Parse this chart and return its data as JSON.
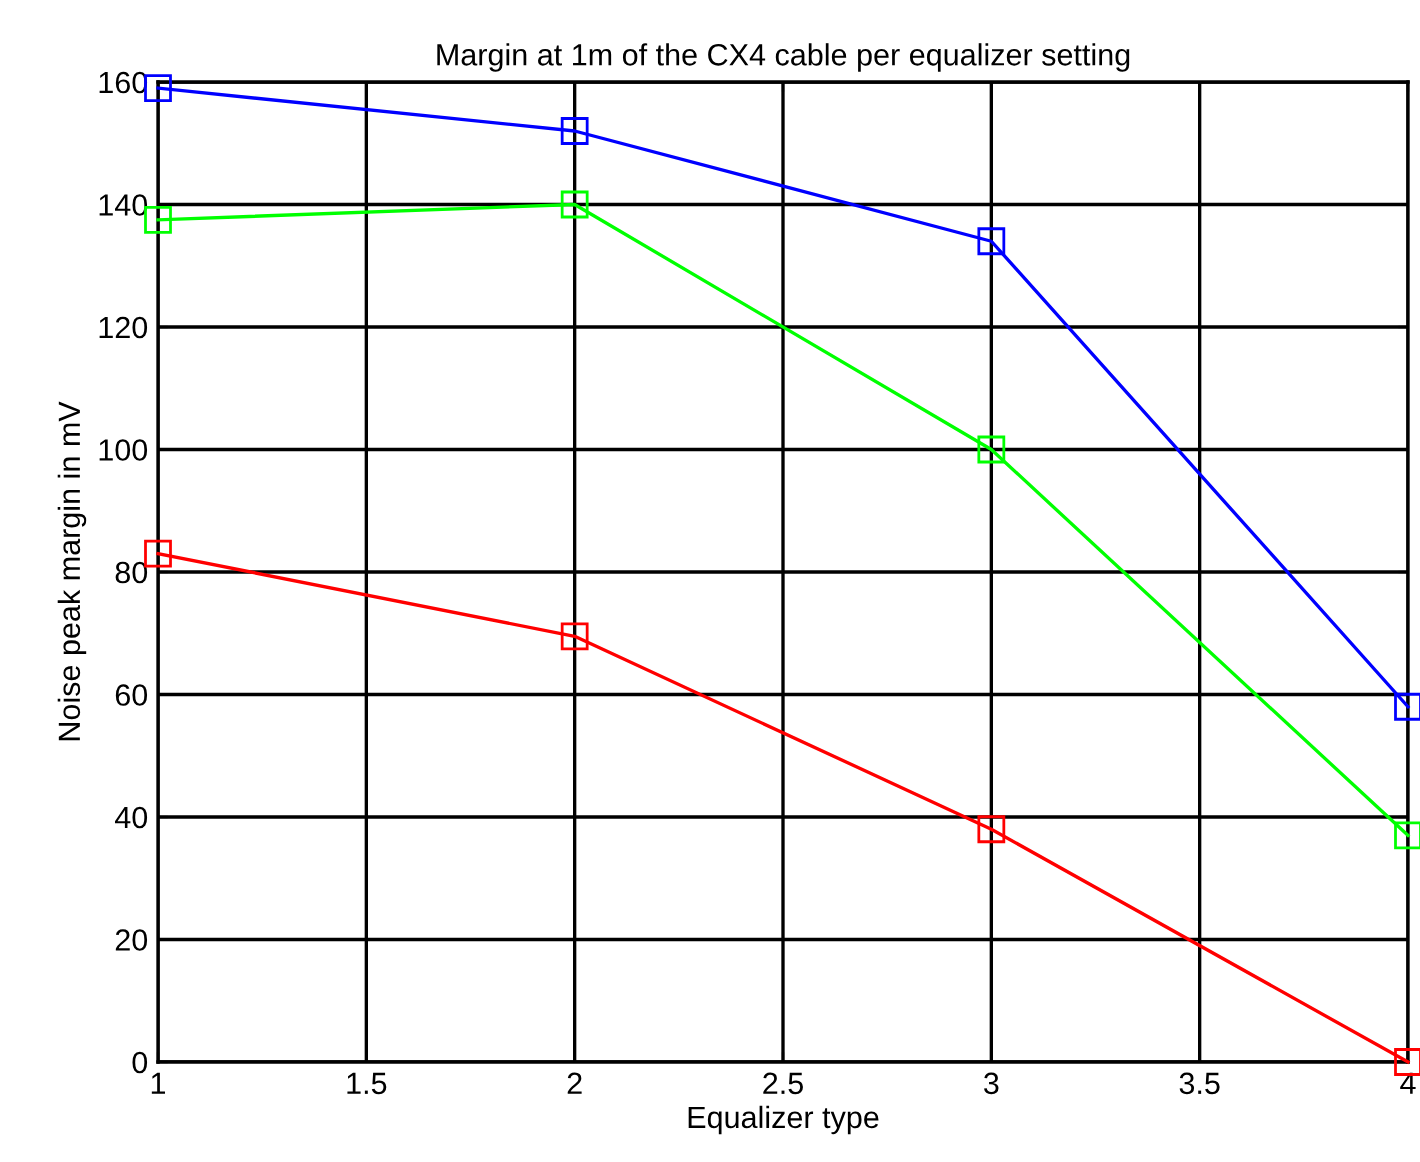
{
  "chart_data": {
    "type": "line",
    "title": "Margin at 1m of the CX4 cable per equalizer setting",
    "xlabel": "Equalizer type",
    "ylabel": "Noise peak margin in mV",
    "x": [
      1,
      2,
      3,
      4
    ],
    "series": [
      {
        "color": "#0000ff",
        "values": [
          159,
          152,
          134,
          58
        ]
      },
      {
        "color": "#00ff00",
        "values": [
          137.5,
          140,
          100,
          37
        ]
      },
      {
        "color": "#ff0000",
        "values": [
          83,
          69.5,
          38,
          0
        ]
      }
    ],
    "xlim": [
      1,
      4
    ],
    "xticks": [
      1,
      1.5,
      2,
      2.5,
      3,
      3.5,
      4
    ],
    "ylim": [
      0,
      160
    ],
    "yticks": [
      0,
      20,
      40,
      60,
      80,
      100,
      120,
      140,
      160
    ],
    "grid": true,
    "marker": "square",
    "line_style": "solid",
    "legend": false
  }
}
